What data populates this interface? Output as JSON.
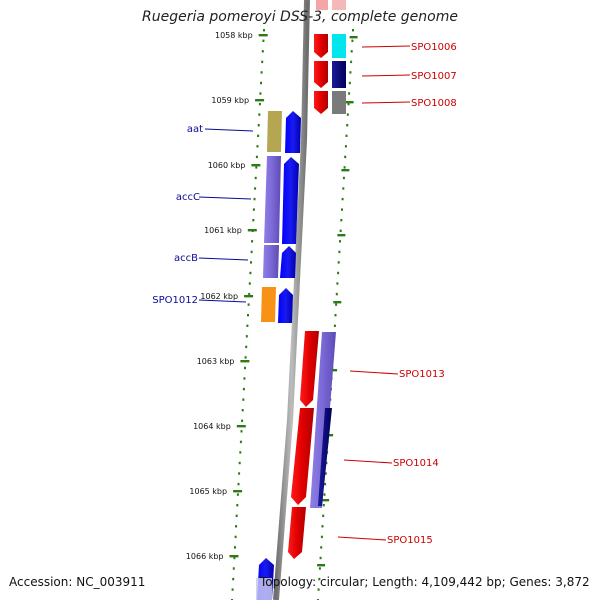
{
  "title": "Ruegeria pomeroyi DSS-3, complete genome",
  "footer": {
    "accession": "Accession: NC_003911",
    "topology": "Topology: circular; Length: 4,109,442 bp; Genes: 3,872"
  },
  "scale_unit": "kbp",
  "scale_ticks": [
    "1058 kbp",
    "1059 kbp",
    "1060 kbp",
    "1061 kbp",
    "1062 kbp",
    "1063 kbp",
    "1064 kbp",
    "1065 kbp",
    "1066 kbp"
  ],
  "gene_labels_left": [
    "aat",
    "accC",
    "accB",
    "SPO1012"
  ],
  "gene_labels_right": [
    "SPO1006",
    "SPO1007",
    "SPO1008",
    "SPO1013",
    "SPO1014",
    "SPO1015"
  ],
  "colors": {
    "label_left": "#0a0a99",
    "label_right": "#cc0000",
    "tick": "#2d7a16",
    "backbone": "#8c8c8c",
    "forward_cds": "#0000ee",
    "reverse_cds": "#ee0000",
    "cog_purple": "#7b68d6",
    "cog_olive": "#b5a651",
    "cog_orange": "#f79217",
    "cog_cyan": "#00e5ee",
    "cog_navy": "#00007a",
    "cog_gray": "#7a7a7a"
  }
}
